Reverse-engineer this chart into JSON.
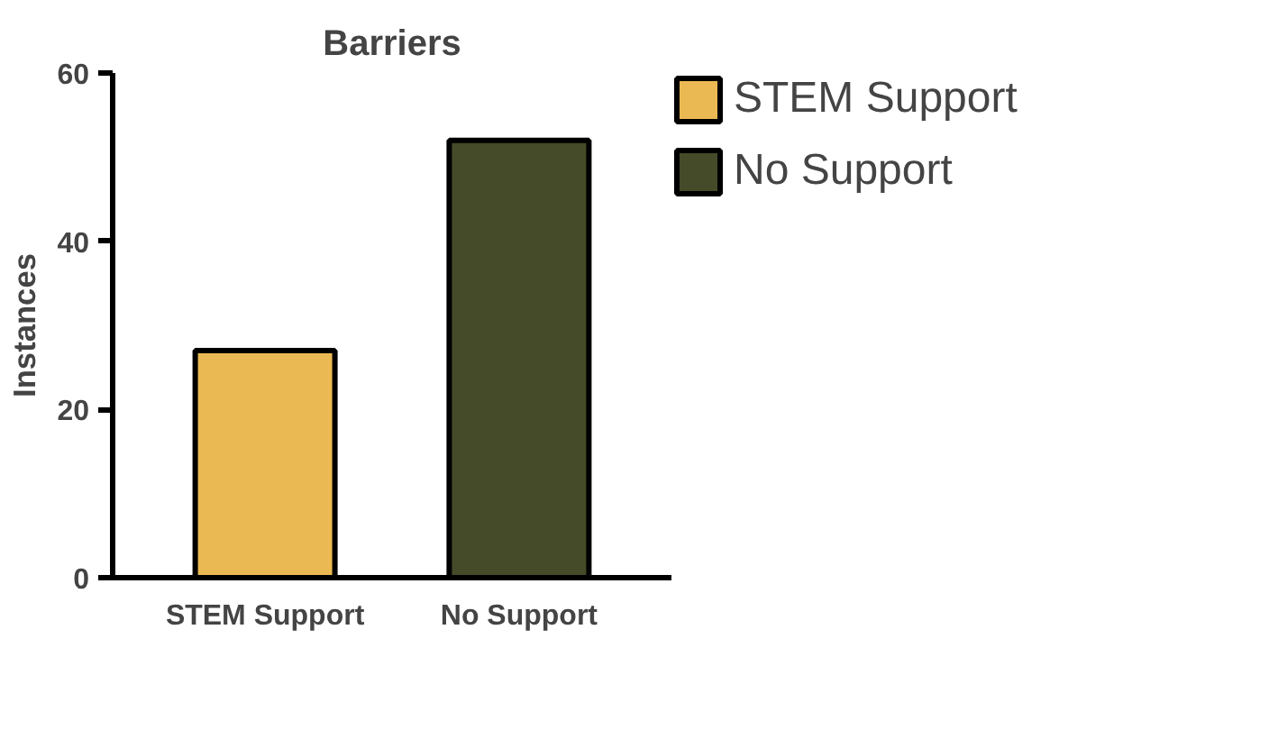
{
  "chart_data": {
    "type": "bar",
    "title": "Barriers",
    "ylabel": "Instances",
    "categories": [
      "STEM Support",
      "No Support"
    ],
    "series": [
      {
        "name": "STEM Support",
        "color": "#ebb953",
        "values": [
          27,
          null
        ]
      },
      {
        "name": "No Support",
        "color": "#454b28",
        "values": [
          null,
          52
        ]
      }
    ],
    "ylim": [
      0,
      60
    ],
    "yticks": [
      0,
      20,
      40,
      60
    ],
    "legend": "right"
  }
}
